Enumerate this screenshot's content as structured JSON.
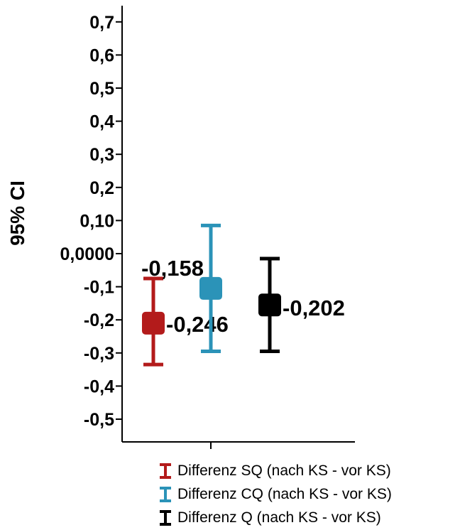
{
  "chart_data": {
    "type": "errorbar",
    "ylabel": "95% CI",
    "ylim": [
      -0.55,
      0.73
    ],
    "yticks": [
      {
        "value": 0.7,
        "label": "0,7"
      },
      {
        "value": 0.6,
        "label": "0,6"
      },
      {
        "value": 0.5,
        "label": "0,5"
      },
      {
        "value": 0.4,
        "label": "0,4"
      },
      {
        "value": 0.3,
        "label": "0,3"
      },
      {
        "value": 0.2,
        "label": "0,2"
      },
      {
        "value": 0.1,
        "label": "0,10"
      },
      {
        "value": 0.0,
        "label": "0,0000"
      },
      {
        "value": -0.1,
        "label": "-0,1"
      },
      {
        "value": -0.2,
        "label": "-0,2"
      },
      {
        "value": -0.3,
        "label": "-0,3"
      },
      {
        "value": -0.4,
        "label": "-0,4"
      },
      {
        "value": -0.5,
        "label": "-0,5"
      }
    ],
    "series": [
      {
        "name": "Differenz SQ (nach KS - vor KS)",
        "color": "#b31b1b",
        "mean": -0.21,
        "lower": -0.335,
        "upper": -0.075,
        "label": "-0,246",
        "label_side": "right-below"
      },
      {
        "name": "Differenz CQ (nach KS - vor KS)",
        "color": "#2b93b8",
        "mean": -0.105,
        "lower": -0.295,
        "upper": 0.085,
        "label": "-0,158",
        "label_side": "left-above"
      },
      {
        "name": "Differenz Q (nach KS - vor KS)",
        "color": "#000000",
        "mean": -0.155,
        "lower": -0.295,
        "upper": -0.015,
        "label": "-0,202",
        "label_side": "right"
      }
    ],
    "legend_position": "bottom",
    "grid": false
  }
}
